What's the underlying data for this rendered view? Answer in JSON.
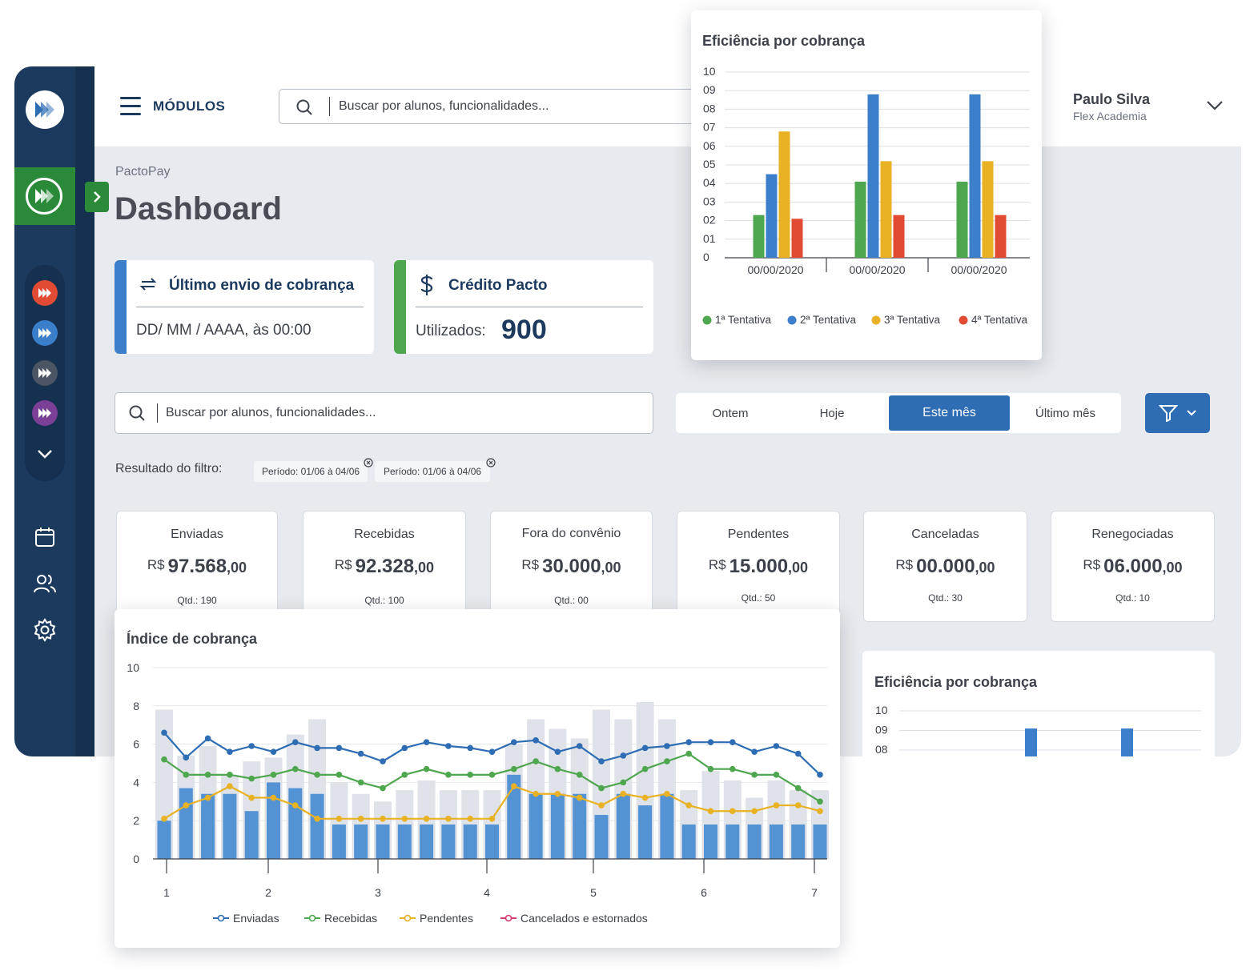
{
  "topbar": {
    "modules_label": "MÓDULOS",
    "search_placeholder": "Buscar por alunos, funcionalidades...",
    "user_name": "Paulo Silva",
    "user_company": "Flex Academia"
  },
  "page": {
    "breadcrumb": "PactoPay",
    "title": "Dashboard"
  },
  "info_cards": {
    "last_send": {
      "title": "Último envio de cobrança",
      "value": "DD/ MM / AAAA, às 00:00",
      "accent": "#3b7fcb"
    },
    "credit": {
      "title": "Crédito Pacto",
      "label": "Utilizados:",
      "value": "900",
      "accent": "#4ea64e"
    }
  },
  "filter": {
    "search_placeholder": "Buscar por alunos, funcionalidades...",
    "periods": [
      "Ontem",
      "Hoje",
      "Este mês",
      "Último mês"
    ],
    "active_period": "Este mês",
    "result_label": "Resultado do filtro:",
    "chips": [
      "Período: 01/06 à 04/06",
      "Período: 01/06 à 04/06"
    ]
  },
  "stats": [
    {
      "label": "Enviadas",
      "currency": "R$",
      "value": "97.568",
      "cents": ",00",
      "qty": "Qtd.: 190"
    },
    {
      "label": "Recebidas",
      "currency": "R$",
      "value": "92.328",
      "cents": ",00",
      "qty": "Qtd.: 100"
    },
    {
      "label": "Fora do convênio",
      "currency": "R$",
      "value": "30.000",
      "cents": ",00",
      "qty": "Qtd.: 00"
    },
    {
      "label": "Pendentes",
      "currency": "R$",
      "value": "15.000",
      "cents": ",00",
      "qty": "Qtd.: 50"
    },
    {
      "label": "Canceladas",
      "currency": "R$",
      "value": "00.000",
      "cents": ",00",
      "qty": "Qtd.: 30"
    },
    {
      "label": "Renegociadas",
      "currency": "R$",
      "value": "06.000",
      "cents": ",00",
      "qty": "Qtd.: 10"
    }
  ],
  "colors": {
    "navy": "#1c3a5e",
    "primary": "#2e6db4",
    "green": "#4ea64e",
    "blue": "#3b7fcb",
    "yellow": "#e9b124",
    "red": "#e24b33",
    "pink": "#d63a73",
    "gray_bar": "#dfe2e8",
    "bar_blue": "#5393d3"
  },
  "icons": [
    "logo-icon",
    "menu-icon",
    "search-icon",
    "chevron-down-icon",
    "chevron-right-icon",
    "sync-icon",
    "dollar-icon",
    "filter-icon",
    "close-circle-icon",
    "calendar-icon",
    "users-icon",
    "gear-icon"
  ],
  "chart_data": [
    {
      "id": "eficiencia_top",
      "type": "bar",
      "title": "Eficiência por cobrança",
      "y_ticks": [
        "0",
        "01",
        "02",
        "03",
        "04",
        "05",
        "06",
        "07",
        "08",
        "09",
        "10"
      ],
      "ylim": [
        0,
        10
      ],
      "categories": [
        "00/00/2020",
        "00/00/2020",
        "00/00/2020"
      ],
      "series": [
        {
          "name": "1ª Tentativa",
          "color": "#4ea64e",
          "values": [
            2.3,
            4.1,
            4.1
          ]
        },
        {
          "name": "2ª Tentativa",
          "color": "#3b7fcb",
          "values": [
            4.5,
            8.8,
            8.8
          ]
        },
        {
          "name": "3ª Tentativa",
          "color": "#e9b124",
          "values": [
            6.8,
            5.2,
            5.2
          ]
        },
        {
          "name": "4ª Tentativa",
          "color": "#e24b33",
          "values": [
            2.1,
            2.3,
            2.3
          ]
        }
      ],
      "legend": "bottom"
    },
    {
      "id": "indice",
      "type": "line",
      "title": "Índice de cobrança",
      "y_ticks": [
        "0",
        "2",
        "4",
        "6",
        "8",
        "10"
      ],
      "ylim": [
        0,
        10
      ],
      "x_ticks": [
        "1",
        "2",
        "3",
        "4",
        "5",
        "6",
        "7"
      ],
      "bars_background": [
        7.8,
        5.4,
        5.9,
        4.4,
        5.1,
        5.3,
        6.5,
        7.3,
        4.0,
        3.4,
        3.0,
        3.6,
        4.1,
        3.6,
        3.6,
        3.6,
        6.0,
        7.3,
        6.8,
        6.3,
        7.8,
        7.3,
        8.2,
        7.3,
        3.6,
        4.6,
        4.1,
        3.2,
        4.1,
        3.6,
        3.6
      ],
      "bars_foreground": [
        2.0,
        3.7,
        3.4,
        3.4,
        2.5,
        4.0,
        3.7,
        3.4,
        1.8,
        1.8,
        1.8,
        1.8,
        1.8,
        1.8,
        1.8,
        1.8,
        4.4,
        3.4,
        3.4,
        3.4,
        2.3,
        3.4,
        2.8,
        3.4,
        1.8,
        1.8,
        1.8,
        1.8,
        1.8,
        1.8,
        1.8
      ],
      "series": [
        {
          "name": "Enviadas",
          "color": "#2e6db4",
          "values": [
            6.6,
            5.3,
            6.3,
            5.6,
            5.9,
            5.6,
            6.1,
            5.8,
            5.8,
            5.5,
            5.1,
            5.8,
            6.1,
            5.9,
            5.8,
            5.6,
            6.1,
            6.2,
            5.6,
            5.9,
            5.1,
            5.4,
            5.8,
            5.9,
            6.1,
            6.1,
            6.1,
            5.6,
            5.9,
            5.5,
            4.4
          ]
        },
        {
          "name": "Recebidas",
          "color": "#4ea64e",
          "values": [
            5.2,
            4.4,
            4.4,
            4.4,
            4.2,
            4.4,
            4.7,
            4.4,
            4.4,
            4.0,
            3.7,
            4.4,
            4.7,
            4.4,
            4.4,
            4.4,
            4.7,
            5.1,
            4.7,
            4.4,
            3.7,
            4.0,
            4.7,
            5.1,
            5.5,
            4.7,
            4.7,
            4.4,
            4.4,
            3.7,
            3.0
          ]
        },
        {
          "name": "Pendentes",
          "color": "#e9b124",
          "values": [
            2.1,
            2.8,
            3.2,
            3.8,
            3.2,
            3.2,
            2.8,
            2.1,
            2.1,
            2.1,
            2.1,
            2.1,
            2.1,
            2.1,
            2.1,
            2.1,
            3.8,
            3.4,
            3.4,
            3.2,
            2.8,
            3.4,
            3.2,
            3.4,
            2.8,
            2.5,
            2.5,
            2.5,
            2.8,
            2.8,
            2.5
          ]
        },
        {
          "name": "Cancelados e estornados",
          "color": "#d63a73",
          "values": []
        }
      ],
      "legend": "bottom"
    },
    {
      "id": "eficiencia_bottom",
      "type": "bar",
      "title": "Eficiência por cobrança",
      "y_ticks": [
        "08",
        "09",
        "10"
      ],
      "values": [
        9.1,
        9.1
      ]
    }
  ]
}
